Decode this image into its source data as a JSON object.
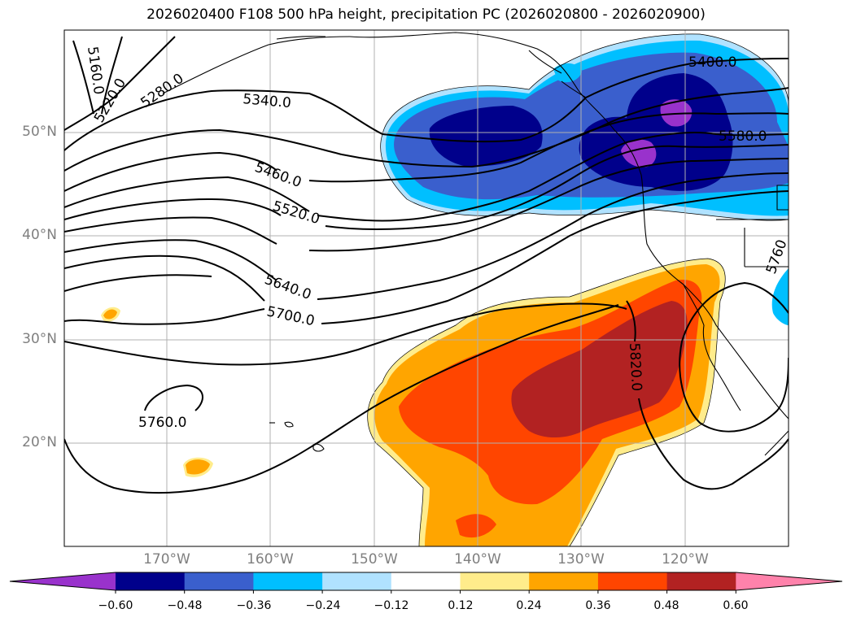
{
  "title": "2026020400 F108 500 hPa height, precipitation PC (2026020800 - 2026020900)",
  "lat_labels": [
    "50°N",
    "40°N",
    "30°N",
    "20°N"
  ],
  "lon_labels": [
    "170°W",
    "160°W",
    "150°W",
    "140°W",
    "130°W",
    "120°W"
  ],
  "contour_labels": [
    "5160.0",
    "5220.0",
    "5280.0",
    "5340.0",
    "5400.0",
    "5460.0",
    "5520.0",
    "5580.0",
    "5640.0",
    "5700.0",
    "5760.0",
    "5820.0",
    "5760"
  ],
  "colorbar": {
    "ticks": [
      "−0.60",
      "−0.48",
      "−0.36",
      "−0.24",
      "−0.12",
      "0.12",
      "0.24",
      "0.36",
      "0.48",
      "0.60"
    ],
    "colors": [
      "#9932cc",
      "#00008b",
      "#3a5fcd",
      "#00bfff",
      "#b0e2ff",
      "#ffffff",
      "#ffec8b",
      "#ffa500",
      "#ff4500",
      "#b22222",
      "#ff82ab"
    ]
  },
  "colors": {
    "neg_high": "#00008b",
    "neg_mid": "#3a5fcd",
    "neg_low": "#00bfff",
    "neg_faint": "#b0e2ff",
    "neg_extreme": "#9932cc",
    "pos_faint": "#ffec8b",
    "pos_low": "#ffa500",
    "pos_mid": "#ff4500",
    "pos_high": "#b22222",
    "grid": "#b0b0b0"
  }
}
